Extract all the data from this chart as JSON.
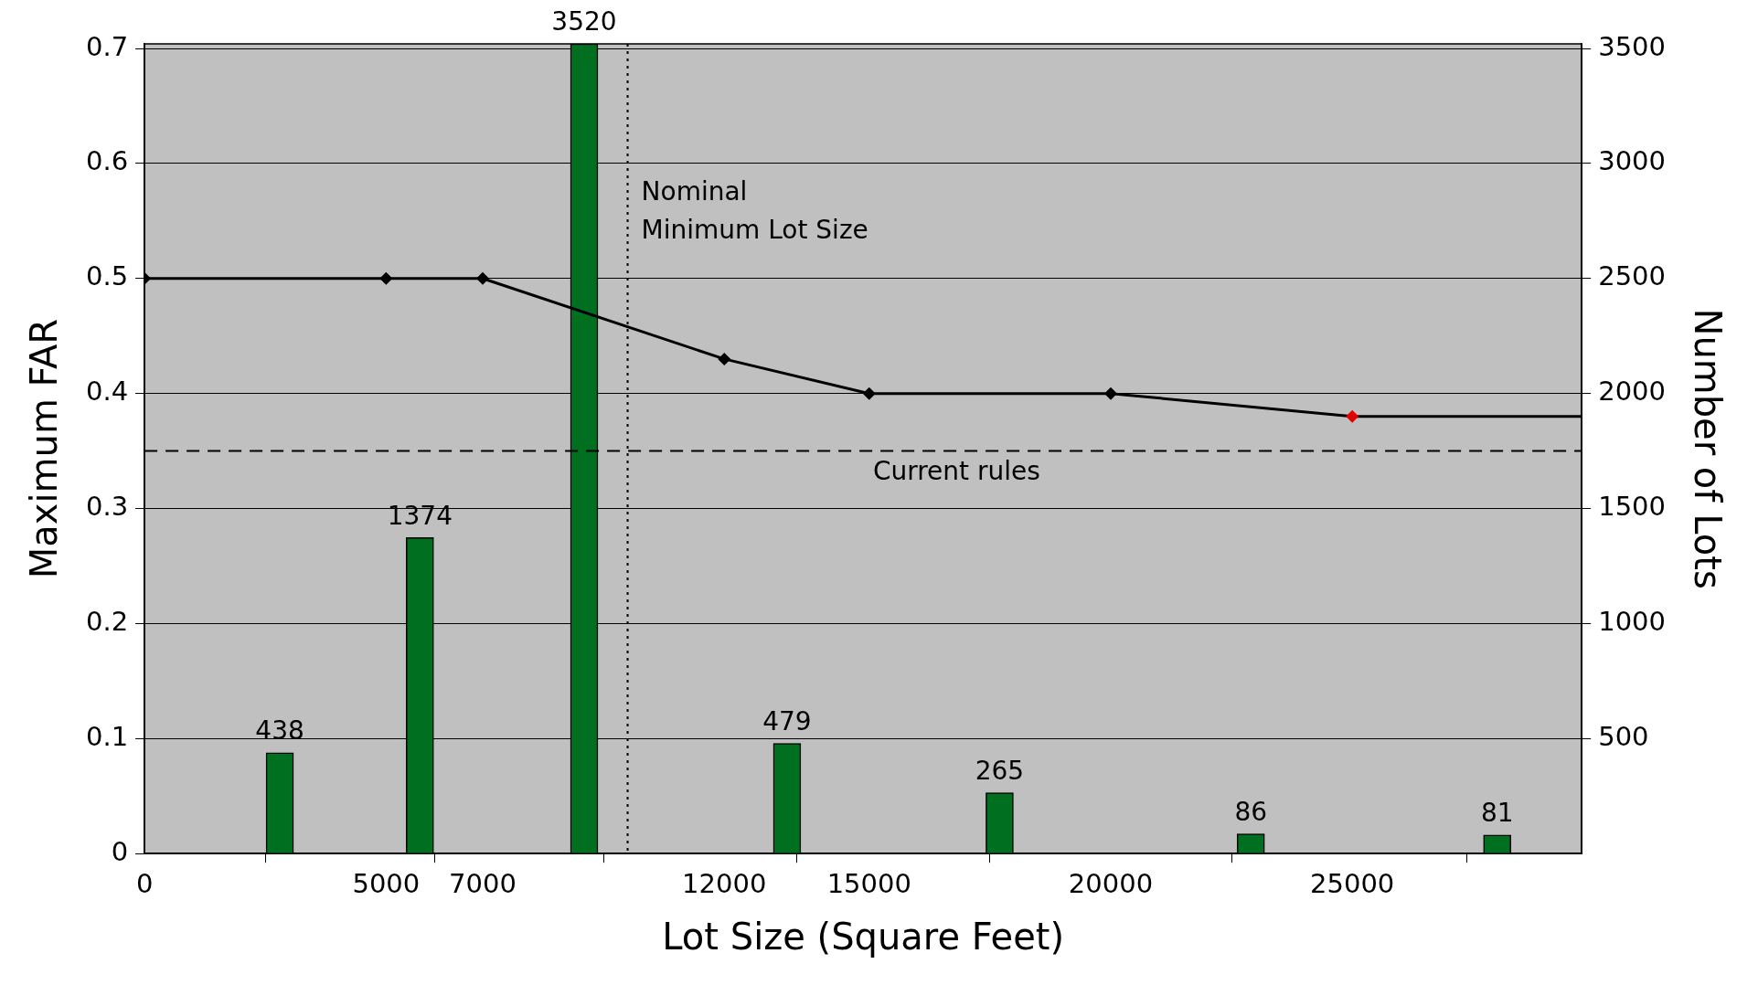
{
  "chart_data": {
    "type": "bar",
    "xlabel": "Lot Size (Square Feet)",
    "ylabel": "Maximum FAR",
    "y2label": "Number of Lots",
    "xlim": [
      0,
      29750
    ],
    "xticks": [
      0,
      5000,
      7000,
      12000,
      15000,
      20000,
      25000,
      {
        "value": 29750,
        "label": null
      }
    ],
    "ylim": [
      0,
      0.704
    ],
    "yticks": [
      0,
      0.1,
      0.2,
      0.3,
      0.4,
      0.5,
      0.6,
      0.7
    ],
    "y2lim": [
      0,
      3520
    ],
    "y2ticks": [
      500,
      1000,
      1500,
      2000,
      2500,
      3000,
      3500
    ],
    "grid": "y",
    "legend": false,
    "marker": "diamond",
    "line_style": "solid",
    "series": [
      {
        "axis": "y2",
        "color": "#006f1f",
        "x": [
          2800,
          5700,
          9100,
          13300,
          17700,
          22900,
          28000
        ],
        "values": [
          438,
          1374,
          3520,
          479,
          265,
          86,
          81
        ],
        "value_labels": [
          "438",
          "1374",
          "3520",
          "479",
          "265",
          "86",
          "81"
        ]
      },
      {
        "type": "line",
        "color": "#000000",
        "x": [
          0,
          5000,
          7000,
          12000,
          15000,
          20000,
          25000,
          29750
        ],
        "values": [
          0.5,
          0.5,
          0.5,
          0.43,
          0.4,
          0.4,
          0.38,
          0.38
        ],
        "colors": [
          "#000000",
          "#000000",
          "#000000",
          "#000000",
          "#000000",
          "#000000",
          "#e00000",
          null
        ]
      }
    ],
    "ref_lines": [
      {
        "axis": "x",
        "value": 10000,
        "label": "Nominal\nMinimum Lot Size",
        "color": "#000000",
        "line_style": "dotted"
      },
      {
        "axis": "y",
        "value": 0.35,
        "label": "Current rules",
        "color": "#000000",
        "line_style": "dashed"
      }
    ]
  }
}
